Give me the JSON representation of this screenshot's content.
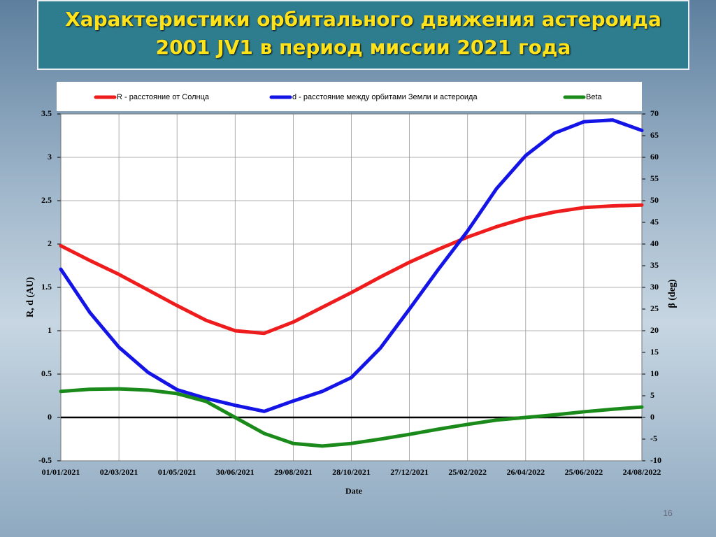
{
  "slide": {
    "title": [
      "Характеристики орбитального движения астероида",
      "2001 JV1 в период миссии 2021 года"
    ],
    "page_number": 16
  },
  "chart_data": {
    "type": "line",
    "x": [
      "01/01/2021",
      "31/01/2021",
      "02/03/2021",
      "01/04/2021",
      "01/05/2021",
      "31/05/2021",
      "30/06/2021",
      "30/07/2021",
      "29/08/2021",
      "28/09/2021",
      "28/10/2021",
      "27/11/2021",
      "27/12/2021",
      "26/01/2022",
      "25/02/2022",
      "27/03/2022",
      "26/04/2022",
      "26/05/2022",
      "25/06/2022",
      "25/07/2022",
      "24/08/2022"
    ],
    "xlim": [
      "01/01/2021",
      "24/08/2022"
    ],
    "xticks": [
      "01/01/2021",
      "02/03/2021",
      "01/05/2021",
      "30/06/2021",
      "29/08/2021",
      "28/10/2021",
      "27/12/2021",
      "25/02/2022",
      "26/04/2022",
      "25/06/2022",
      "24/08/2022"
    ],
    "xlabel": "Date",
    "ylabel": "R, d (AU)",
    "y2label": "β (deg)",
    "ylim": [
      -0.5,
      3.5
    ],
    "yticks": [
      -0.5,
      0,
      0.5,
      1,
      1.5,
      2,
      2.5,
      3,
      3.5
    ],
    "y2lim": [
      -10,
      70
    ],
    "y2ticks": [
      -10,
      -5,
      0,
      5,
      10,
      15,
      20,
      25,
      30,
      35,
      40,
      45,
      50,
      55,
      60,
      65,
      70
    ],
    "grid": true,
    "legend": "top",
    "series": [
      {
        "name": "R - расстояние от Солнца",
        "color": "#ee1c1c",
        "values": [
          1.98,
          1.81,
          1.65,
          1.47,
          1.29,
          1.12,
          1.0,
          0.97,
          1.1,
          1.27,
          1.44,
          1.62,
          1.79,
          1.94,
          2.08,
          2.2,
          2.3,
          2.37,
          2.42,
          2.44,
          2.45
        ]
      },
      {
        "name": "d - расстояние между орбитами Земли и астероида",
        "color": "#1414e6",
        "values": [
          1.71,
          1.21,
          0.81,
          0.52,
          0.32,
          0.22,
          0.14,
          0.07,
          0.19,
          0.3,
          0.46,
          0.8,
          1.25,
          1.71,
          2.15,
          2.64,
          3.02,
          3.28,
          3.41,
          3.43,
          3.31
        ]
      },
      {
        "name": "Beta",
        "color": "#1a8a1a",
        "axis": "y2",
        "values": [
          6.0,
          6.5,
          6.6,
          6.3,
          5.5,
          3.7,
          0,
          -3.7,
          -6.0,
          -6.6,
          -6.0,
          -5.0,
          -3.9,
          -2.7,
          -1.6,
          -0.6,
          0,
          0.6,
          1.3,
          1.9,
          2.4
        ]
      }
    ]
  }
}
